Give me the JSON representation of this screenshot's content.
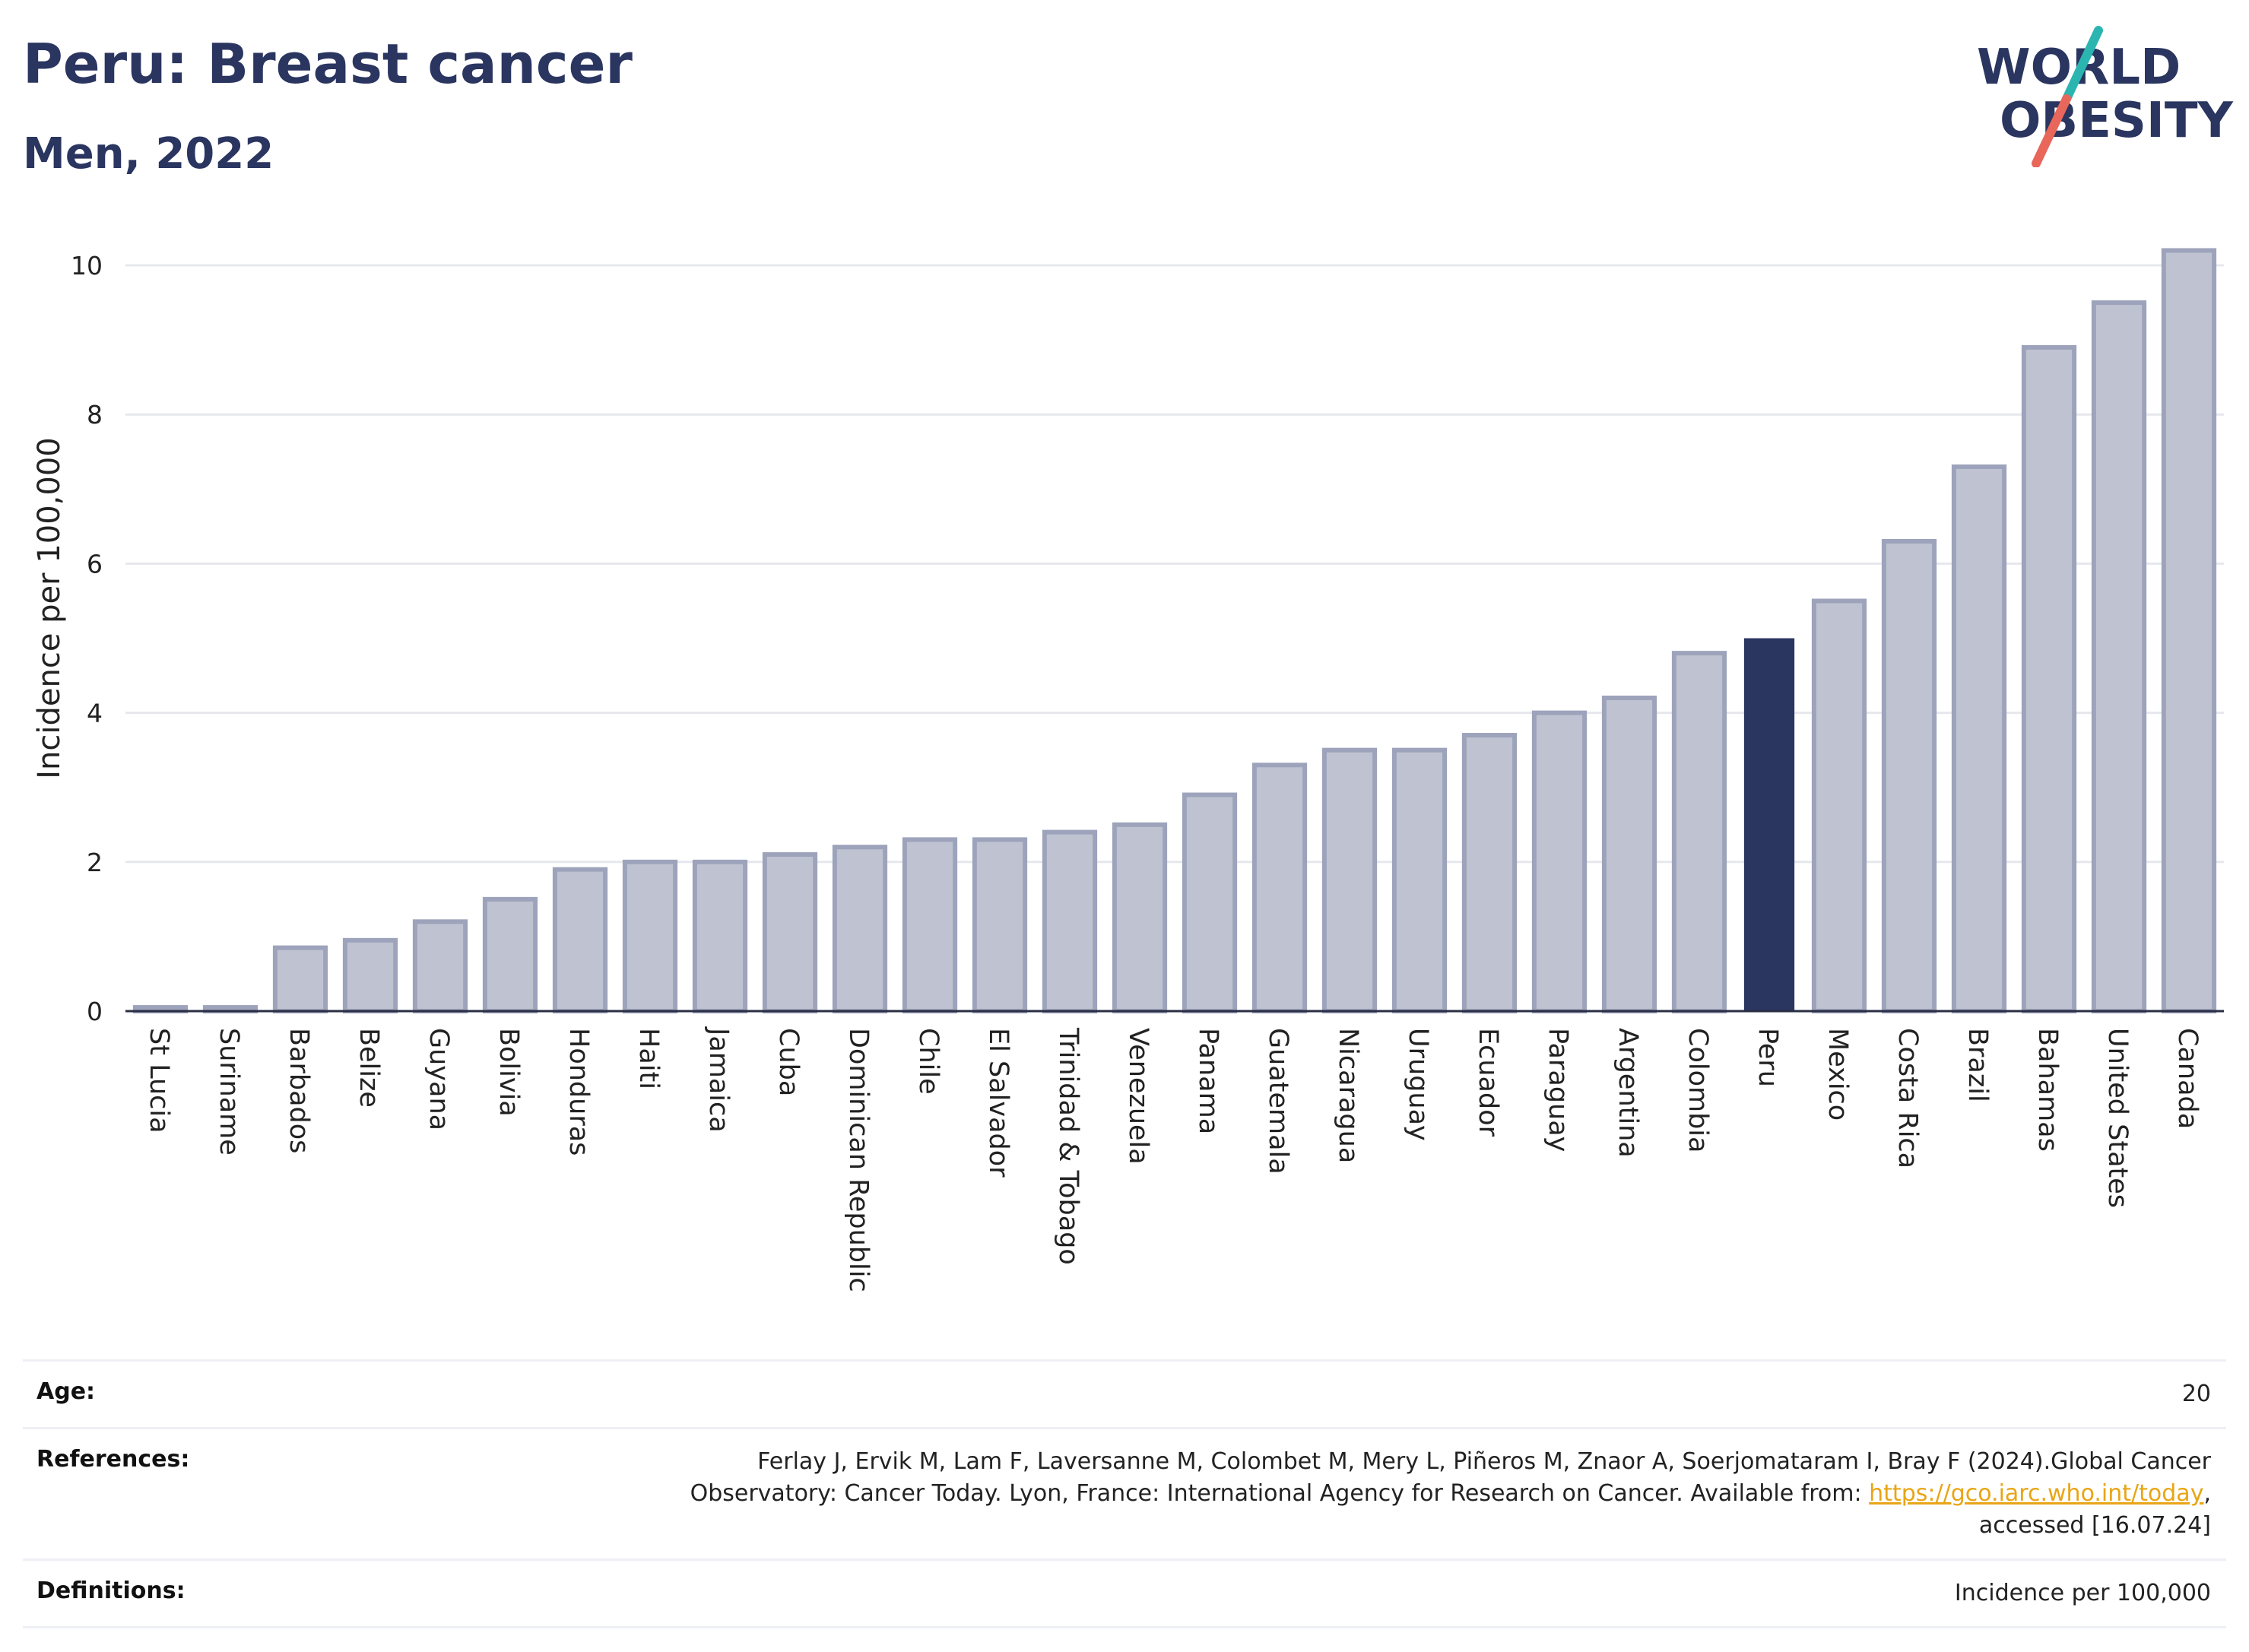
{
  "header": {
    "title": "Peru: Breast cancer",
    "subtitle": "Men, 2022"
  },
  "logo": {
    "line1": "WORLD",
    "line2": "OBESITY",
    "colors": {
      "text": "#2a3560",
      "slash_teal": "#2bb5b0",
      "slash_red": "#e8665a"
    }
  },
  "colors": {
    "bar_fill": "#bfc3d1",
    "bar_stroke": "#9da3bb",
    "highlight": "#2a3560",
    "grid": "#e6e8ee"
  },
  "chart_data": {
    "type": "bar",
    "title": "Peru: Breast cancer",
    "subtitle": "Men, 2022",
    "xlabel": "",
    "ylabel": "Incidence per 100,000",
    "ylim": [
      0,
      10.5
    ],
    "yticks": [
      0,
      2,
      4,
      6,
      8,
      10
    ],
    "grid": true,
    "highlight": "Peru",
    "categories": [
      "St Lucia",
      "Suriname",
      "Barbados",
      "Belize",
      "Guyana",
      "Bolivia",
      "Honduras",
      "Haiti",
      "Jamaica",
      "Cuba",
      "Dominican Republic",
      "Chile",
      "El Salvador",
      "Trinidad & Tobago",
      "Venezuela",
      "Panama",
      "Guatemala",
      "Nicaragua",
      "Uruguay",
      "Ecuador",
      "Paraguay",
      "Argentina",
      "Colombia",
      "Peru",
      "Mexico",
      "Costa Rica",
      "Brazil",
      "Bahamas",
      "United States",
      "Canada"
    ],
    "values": [
      0.05,
      0.05,
      0.85,
      0.95,
      1.2,
      1.5,
      1.9,
      2.0,
      2.0,
      2.1,
      2.2,
      2.3,
      2.3,
      2.4,
      2.5,
      2.9,
      3.3,
      3.5,
      3.5,
      3.7,
      4.0,
      4.2,
      4.8,
      5.0,
      5.5,
      6.3,
      7.3,
      8.9,
      9.5,
      10.2
    ]
  },
  "info": {
    "age_label": "Age:",
    "age_value": "20",
    "references_label": "References:",
    "references_text": "Ferlay J, Ervik M, Lam F, Laversanne M, Colombet M, Mery L, Piñeros M, Znaor A, Soerjomataram I, Bray F (2024).Global Cancer Observatory: Cancer Today. Lyon, France: International Agency for Research on Cancer. Available from: ",
    "references_link": "https://gco.iarc.who.int/today",
    "references_tail": ", accessed [16.07.24]",
    "definitions_label": "Definitions:",
    "definitions_value": "Incidence per 100,000"
  }
}
